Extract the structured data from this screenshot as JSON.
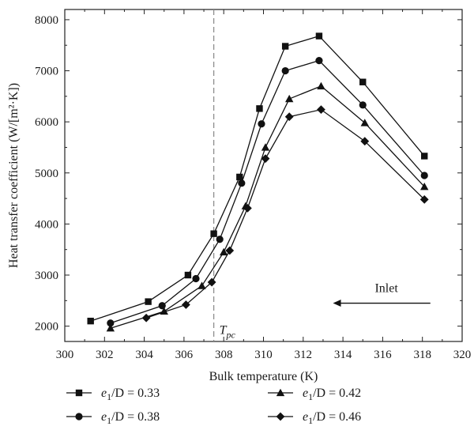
{
  "chart_data": {
    "type": "line",
    "xlabel": "Bulk temperature (K)",
    "ylabel": "Heat transfer coefficient (W/[m²·K])",
    "xlim": [
      300,
      320
    ],
    "ylim": [
      1700,
      8200
    ],
    "x_ticks": [
      "300",
      "302",
      "304",
      "306",
      "308",
      "310",
      "312",
      "314",
      "316",
      "318",
      "320"
    ],
    "y_ticks": [
      "2000",
      "3000",
      "4000",
      "5000",
      "6000",
      "7000",
      "8000"
    ],
    "x_tick_values": [
      300,
      302,
      304,
      306,
      308,
      310,
      312,
      314,
      316,
      318,
      320
    ],
    "y_tick_values": [
      2000,
      3000,
      4000,
      5000,
      6000,
      7000,
      8000
    ],
    "grid": false,
    "legend_position": "bottom",
    "reference_line": {
      "x": 307.5,
      "label": "T",
      "label_sub": "pc",
      "style": "dashed"
    },
    "annotation": {
      "text": "Inlet",
      "arrow_from_x": 318.4,
      "arrow_to_x": 313.5,
      "y": 2450
    },
    "series": [
      {
        "label_prefix": "e",
        "label_sub": "1",
        "label_suffix": "/D = 0.33",
        "marker": "square",
        "x": [
          301.3,
          304.2,
          306.2,
          307.5,
          308.8,
          309.8,
          311.1,
          312.8,
          315.0,
          318.1
        ],
        "y": [
          2100,
          2480,
          3000,
          3810,
          4920,
          6260,
          7480,
          7680,
          6780,
          5330
        ]
      },
      {
        "label_prefix": "e",
        "label_sub": "1",
        "label_suffix": "/D = 0.38",
        "marker": "circle",
        "x": [
          302.3,
          304.9,
          306.6,
          307.8,
          308.9,
          309.9,
          311.1,
          312.8,
          315.0,
          318.1
        ],
        "y": [
          2060,
          2400,
          2930,
          3700,
          4800,
          5960,
          7000,
          7200,
          6330,
          4950
        ]
      },
      {
        "label_prefix": "e",
        "label_sub": "1",
        "label_suffix": "/D = 0.42",
        "marker": "triangle",
        "x": [
          302.3,
          305.0,
          306.9,
          308.0,
          309.1,
          310.1,
          311.3,
          312.9,
          315.1,
          318.1
        ],
        "y": [
          1960,
          2290,
          2790,
          3450,
          4350,
          5500,
          6450,
          6700,
          5980,
          4730
        ]
      },
      {
        "label_prefix": "e",
        "label_sub": "1",
        "label_suffix": "/D = 0.46",
        "marker": "diamond",
        "x": [
          304.1,
          306.1,
          307.4,
          308.3,
          309.2,
          310.1,
          311.3,
          312.9,
          315.1,
          318.1
        ],
        "y": [
          2160,
          2420,
          2860,
          3480,
          4310,
          5280,
          6100,
          6240,
          5620,
          4480
        ]
      }
    ]
  }
}
